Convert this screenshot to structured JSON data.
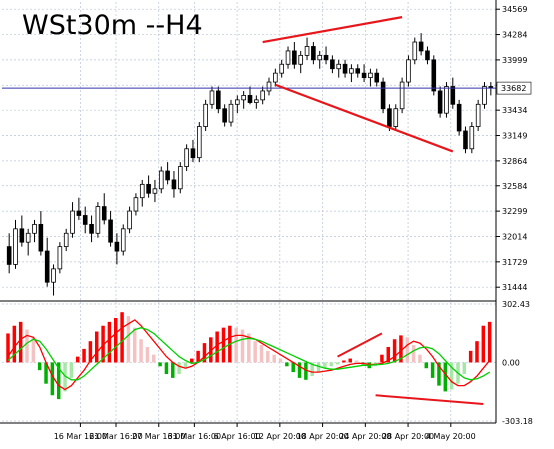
{
  "chart_data": [
    {
      "type": "candlestick",
      "title": "WSt30m --H4",
      "current_price_label": "33682",
      "current_price": 33682,
      "ylim": [
        31300,
        34650
      ],
      "y_ticks": [
        34569,
        34284,
        33999,
        33714,
        33434,
        33149,
        32864,
        32584,
        32299,
        32014,
        31729,
        31444
      ],
      "grid": true,
      "series": [
        {
          "values": [
            [
              31900,
              32050,
              31600,
              31700
            ],
            [
              31700,
              32200,
              31650,
              32100
            ],
            [
              32100,
              32250,
              31900,
              31950
            ],
            [
              31950,
              32100,
              31800,
              32050
            ],
            [
              32050,
              32200,
              31950,
              32150
            ],
            [
              32150,
              32300,
              31800,
              31850
            ],
            [
              31850,
              32000,
              31450,
              31500
            ],
            [
              31500,
              31700,
              31350,
              31650
            ],
            [
              31650,
              31950,
              31600,
              31900
            ],
            [
              31900,
              32100,
              31850,
              32050
            ],
            [
              32050,
              32400,
              32000,
              32300
            ],
            [
              32300,
              32450,
              32200,
              32250
            ],
            [
              32250,
              32350,
              32050,
              32150
            ],
            [
              32150,
              32250,
              31950,
              32050
            ],
            [
              32050,
              32400,
              32000,
              32350
            ],
            [
              32350,
              32500,
              32150,
              32200
            ],
            [
              32200,
              32300,
              31900,
              31950
            ],
            [
              31950,
              32050,
              31700,
              31850
            ],
            [
              31850,
              32150,
              31800,
              32100
            ],
            [
              32100,
              32350,
              32050,
              32300
            ],
            [
              32300,
              32500,
              32250,
              32450
            ],
            [
              32450,
              32650,
              32350,
              32600
            ],
            [
              32600,
              32700,
              32450,
              32500
            ],
            [
              32500,
              32650,
              32400,
              32550
            ],
            [
              32550,
              32800,
              32500,
              32750
            ],
            [
              32750,
              32850,
              32600,
              32650
            ],
            [
              32650,
              32750,
              32450,
              32550
            ],
            [
              32550,
              32850,
              32500,
              32800
            ],
            [
              32800,
              33050,
              32750,
              33000
            ],
            [
              33000,
              33100,
              32850,
              32900
            ],
            [
              32900,
              33300,
              32850,
              33250
            ],
            [
              33250,
              33550,
              33200,
              33500
            ],
            [
              33500,
              33700,
              33450,
              33650
            ],
            [
              33650,
              33700,
              33400,
              33450
            ],
            [
              33450,
              33500,
              33250,
              33300
            ],
            [
              33300,
              33550,
              33250,
              33500
            ],
            [
              33500,
              33600,
              33400,
              33550
            ],
            [
              33550,
              33650,
              33450,
              33600
            ],
            [
              33600,
              33700,
              33500,
              33520
            ],
            [
              33520,
              33600,
              33450,
              33550
            ],
            [
              33550,
              33700,
              33500,
              33650
            ],
            [
              33650,
              33800,
              33600,
              33750
            ],
            [
              33750,
              33900,
              33700,
              33850
            ],
            [
              33850,
              34000,
              33800,
              33950
            ],
            [
              33950,
              34150,
              33900,
              34100
            ],
            [
              34100,
              34200,
              33900,
              33950
            ],
            [
              33950,
              34100,
              33850,
              34050
            ],
            [
              34050,
              34250,
              34000,
              34150
            ],
            [
              34150,
              34200,
              33950,
              34000
            ],
            [
              34000,
              34100,
              33900,
              34050
            ],
            [
              34050,
              34150,
              33950,
              34000
            ],
            [
              34000,
              34050,
              33850,
              33900
            ],
            [
              33900,
              34000,
              33800,
              33950
            ],
            [
              33950,
              34000,
              33800,
              33850
            ],
            [
              33850,
              33950,
              33750,
              33900
            ],
            [
              33900,
              33950,
              33800,
              33850
            ],
            [
              33850,
              33950,
              33750,
              33800
            ],
            [
              33800,
              33900,
              33700,
              33850
            ],
            [
              33850,
              33900,
              33700,
              33750
            ],
            [
              33750,
              33800,
              33400,
              33450
            ],
            [
              33450,
              33500,
              33200,
              33250
            ],
            [
              33250,
              33500,
              33200,
              33450
            ],
            [
              33450,
              33800,
              33400,
              33750
            ],
            [
              33750,
              34050,
              33700,
              34000
            ],
            [
              34000,
              34250,
              33950,
              34200
            ],
            [
              34200,
              34300,
              34050,
              34100
            ],
            [
              34100,
              34150,
              33950,
              34000
            ],
            [
              34000,
              34050,
              33600,
              33650
            ],
            [
              33650,
              33700,
              33350,
              33400
            ],
            [
              33400,
              33750,
              33350,
              33700
            ],
            [
              33700,
              33800,
              33450,
              33500
            ],
            [
              33500,
              33550,
              33150,
              33200
            ],
            [
              33200,
              33250,
              32950,
              33000
            ],
            [
              33000,
              33300,
              32950,
              33250
            ],
            [
              33250,
              33550,
              33200,
              33500
            ],
            [
              33500,
              33750,
              33450,
              33700
            ],
            [
              33700,
              33750,
              33600,
              33682
            ]
          ]
        }
      ],
      "annotations": [
        "trendline-upper-price",
        "trendline-lower-price"
      ]
    },
    {
      "type": "histogram",
      "indicator_ticks": [
        "302.43",
        "0.00",
        "-303.18"
      ],
      "ylim": [
        -303.18,
        302.43
      ],
      "zero_line": 0,
      "grid": true,
      "series": [
        {
          "values": [
            150,
            190,
            210,
            170,
            130,
            -40,
            -110,
            -170,
            -190,
            -150,
            -80,
            30,
            70,
            110,
            160,
            190,
            210,
            230,
            260,
            240,
            180,
            120,
            80,
            40,
            -20,
            -60,
            -80,
            -60,
            -30,
            20,
            60,
            100,
            130,
            160,
            180,
            190,
            180,
            170,
            150,
            110,
            90,
            60,
            40,
            20,
            -20,
            -50,
            -80,
            -90,
            -70,
            -50,
            -30,
            -20,
            -10,
            10,
            20,
            10,
            -10,
            -30,
            -20,
            40,
            80,
            120,
            140,
            130,
            90,
            40,
            -30,
            -80,
            -120,
            -150,
            -140,
            -110,
            -60,
            60,
            110,
            190,
            210
          ]
        },
        {
          "values": [
            30,
            80,
            120,
            140,
            130,
            80,
            0,
            -70,
            -120,
            -140,
            -120,
            -80,
            -40,
            10,
            50,
            90,
            120,
            150,
            180,
            200,
            220,
            190,
            150,
            110,
            70,
            30,
            0,
            -20,
            -30,
            -20,
            0,
            30,
            60,
            90,
            110,
            130,
            140,
            140,
            130,
            120,
            100,
            80,
            60,
            40,
            20,
            0,
            -20,
            -40,
            -50,
            -50,
            -45,
            -40,
            -30,
            -20,
            -10,
            -5,
            -5,
            -10,
            -10,
            -5,
            10,
            30,
            60,
            90,
            110,
            100,
            70,
            30,
            -20,
            -60,
            -100,
            -120,
            -120,
            -100,
            -70,
            -30,
            10
          ]
        },
        {
          "values": [
            10,
            40,
            70,
            100,
            120,
            110,
            70,
            20,
            -30,
            -70,
            -90,
            -90,
            -70,
            -40,
            -10,
            20,
            50,
            80,
            110,
            140,
            170,
            180,
            170,
            150,
            120,
            90,
            60,
            30,
            10,
            -5,
            0,
            15,
            35,
            55,
            75,
            95,
            110,
            120,
            125,
            120,
            110,
            95,
            80,
            65,
            50,
            35,
            20,
            5,
            -10,
            -20,
            -30,
            -35,
            -35,
            -30,
            -25,
            -20,
            -15,
            -15,
            -12,
            -10,
            -5,
            5,
            20,
            40,
            60,
            75,
            80,
            70,
            45,
            10,
            -25,
            -55,
            -80,
            -90,
            -85,
            -70,
            -50
          ]
        }
      ],
      "annotations": [
        "trendline-upper-indicator",
        "trendline-lower-indicator"
      ]
    }
  ],
  "x_axis": {
    "tick_labels": [
      "16 Mar 16:00",
      "21 Mar 16:00",
      "27 Mar 16:00",
      "31 Mar 16:00",
      "6 Apr 16:00",
      "12 Apr 20:00",
      "18 Apr 20:00",
      "24 Apr 20:00",
      "28 Apr 20:00",
      "4 May 20:00"
    ]
  },
  "colors": {
    "bull": "#ffffff",
    "bear": "#000000",
    "wick": "#000000",
    "price_line": "#3333aa",
    "trendline": "#e8161b",
    "hist_up_strong": "#ff0000",
    "hist_up_weak": "#f4c2c2",
    "hist_down_strong": "#00b000",
    "hist_down_weak": "#a6e6a6",
    "signal_red": "#ff0000",
    "signal_green": "#00d000",
    "grid": "#b8c4d8",
    "axis": "#000000",
    "background": "#ffffff"
  }
}
